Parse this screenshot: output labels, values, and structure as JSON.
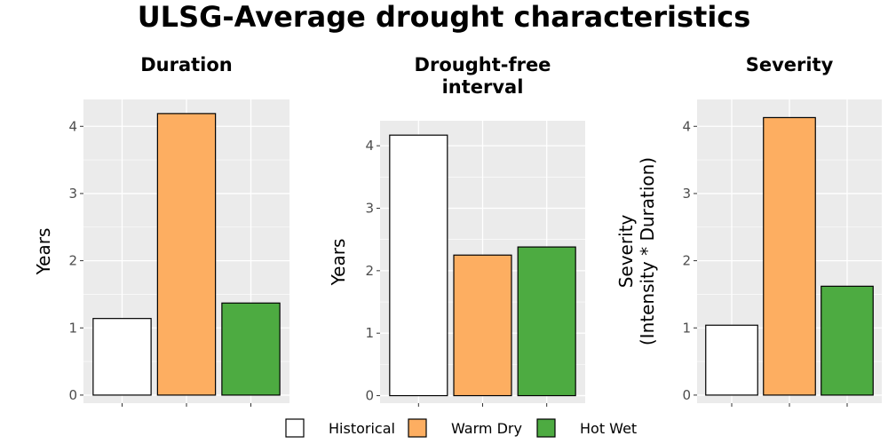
{
  "title": "ULSG-Average drought characteristics",
  "legend": [
    {
      "label": "Historical",
      "color": "#ffffff"
    },
    {
      "label": "Warm Dry",
      "color": "#fdae61"
    },
    {
      "label": "Hot Wet",
      "color": "#4dab41"
    }
  ],
  "chart_data": [
    {
      "type": "bar",
      "title": "Duration",
      "ylabel": "Years",
      "categories": [
        "Historical",
        "Warm Dry",
        "Hot Wet"
      ],
      "values": [
        1.14,
        4.19,
        1.37
      ],
      "yticks": [
        "0",
        "1",
        "2",
        "3",
        "4"
      ],
      "ylim": [
        -0.12,
        4.4
      ]
    },
    {
      "type": "bar",
      "title": "Drought-free\ninterval",
      "ylabel": "Years",
      "categories": [
        "Historical",
        "Warm Dry",
        "Hot Wet"
      ],
      "values": [
        4.17,
        2.25,
        2.38
      ],
      "yticks": [
        "0",
        "1",
        "2",
        "3",
        "4"
      ],
      "ylim": [
        -0.12,
        4.4
      ]
    },
    {
      "type": "bar",
      "title": "Severity",
      "ylabel": "Severity\n(Intensity * Duration)",
      "categories": [
        "Historical",
        "Warm Dry",
        "Hot Wet"
      ],
      "values": [
        1.04,
        4.13,
        1.62
      ],
      "yticks": [
        "0",
        "1",
        "2",
        "3",
        "4"
      ],
      "ylim": [
        -0.12,
        4.4
      ]
    }
  ]
}
